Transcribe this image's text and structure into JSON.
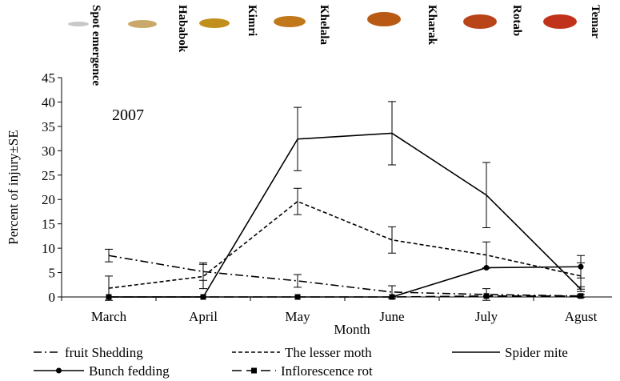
{
  "stages": [
    "Spot emergence",
    "Hababok",
    "Kimri",
    "Khelala",
    "Kharak",
    "Rotab",
    "Temar"
  ],
  "chart_data": {
    "type": "line",
    "annotation": "2007",
    "x_label": "Month",
    "y_label": "Percent of injury±SE",
    "categories": [
      "March",
      "April",
      "May",
      "June",
      "July",
      "Agust"
    ],
    "ylim": [
      0,
      45
    ],
    "yticks": [
      0,
      5,
      10,
      15,
      20,
      25,
      30,
      35,
      40,
      45
    ],
    "series": [
      {
        "name": "fruit Shedding",
        "color": "#000",
        "dash": "dash-dot",
        "values": [
          8.5,
          5.2,
          3.3,
          1.0,
          0.5,
          0.2
        ],
        "errors": [
          1.3,
          1.8,
          1.3,
          1.3,
          1.2,
          0.3
        ]
      },
      {
        "name": "The lesser moth",
        "color": "#000",
        "dash": "dashed",
        "values": [
          1.8,
          4.2,
          19.6,
          11.7,
          8.6,
          4.3
        ],
        "errors": [
          2.5,
          2.5,
          2.7,
          2.7,
          2.7,
          2.7
        ]
      },
      {
        "name": "Spider mite",
        "color": "#000",
        "dash": "solid",
        "values": [
          0,
          0,
          32.4,
          33.6,
          20.9,
          1.6
        ],
        "errors": [
          0,
          0,
          6.5,
          6.5,
          6.7,
          0.5
        ]
      },
      {
        "name": "Bunch fedding",
        "color": "#000",
        "dash": "solid",
        "marker": "circle",
        "values": [
          0,
          0,
          0,
          0,
          6.0,
          6.2
        ],
        "errors": [
          0,
          0,
          0,
          0,
          0,
          2.3
        ]
      },
      {
        "name": "Inflorescence rot",
        "color": "#000",
        "dash": "long-dash",
        "marker": "square",
        "values": [
          0,
          0,
          0,
          0,
          0.2,
          0.2
        ]
      }
    ]
  }
}
